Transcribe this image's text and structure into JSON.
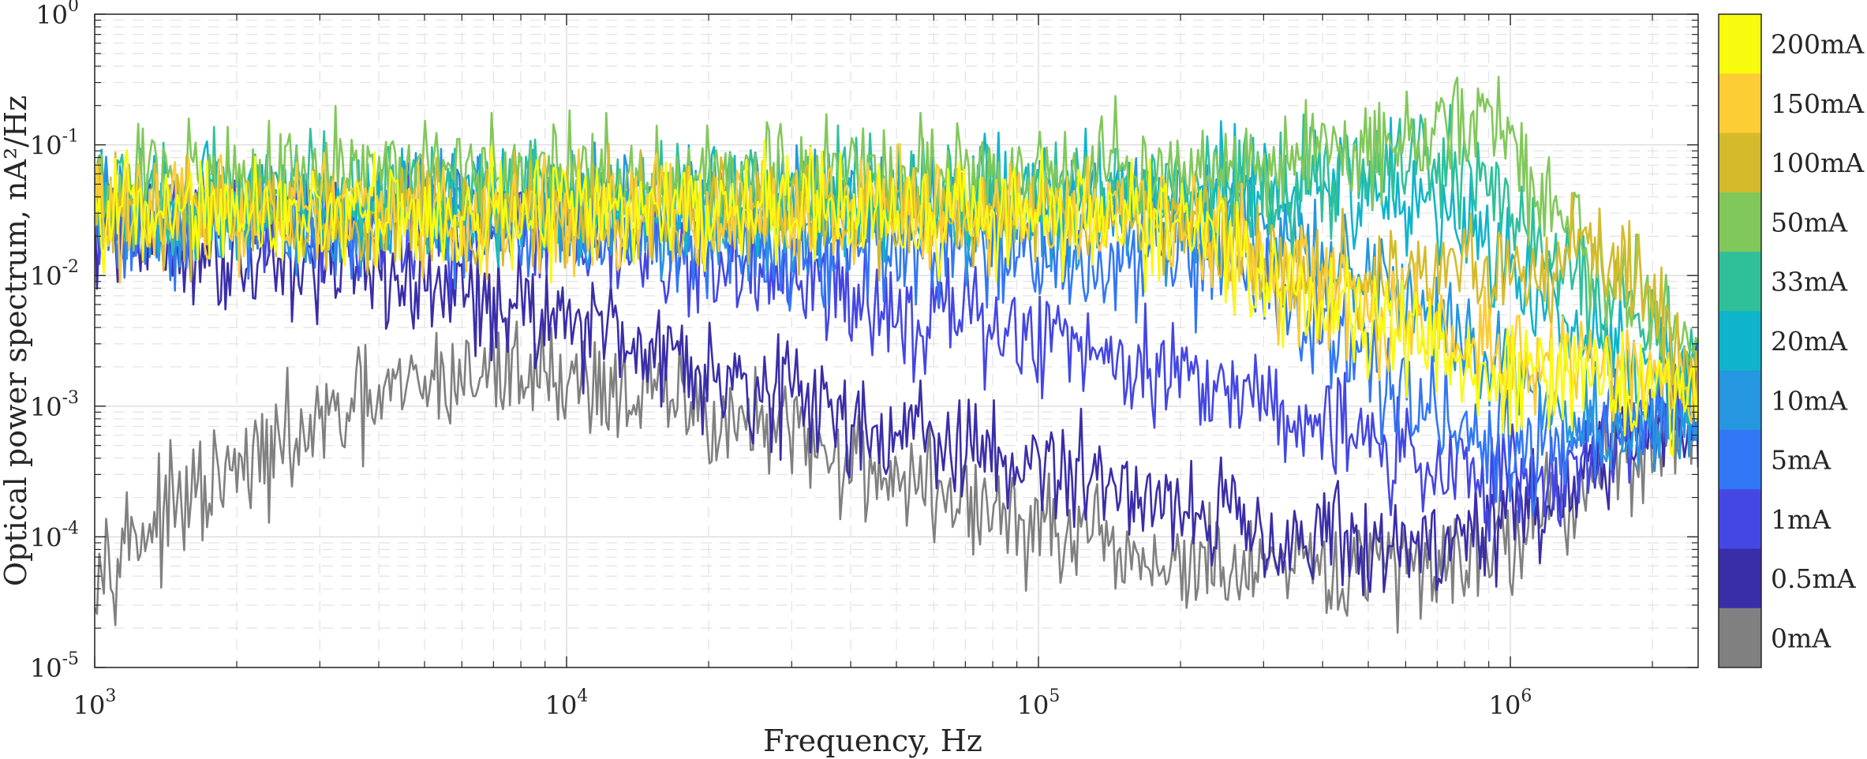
{
  "chart_data": {
    "type": "line",
    "title": "",
    "xlabel": "Frequency, Hz",
    "ylabel": "Optical power spectrum,  nA²/Hz",
    "xscale": "log",
    "yscale": "log",
    "xlim": [
      1000,
      2500000
    ],
    "ylim": [
      1e-05,
      1
    ],
    "grid": true,
    "x_ticks": [
      {
        "base": "10",
        "exp": "3",
        "value": 1000
      },
      {
        "base": "10",
        "exp": "4",
        "value": 10000
      },
      {
        "base": "10",
        "exp": "5",
        "value": 100000
      },
      {
        "base": "10",
        "exp": "6",
        "value": 1000000
      }
    ],
    "y_ticks": [
      {
        "base": "10",
        "exp": "0",
        "value": 1
      },
      {
        "base": "10",
        "exp": "-1",
        "value": 0.1
      },
      {
        "base": "10",
        "exp": "-2",
        "value": 0.01
      },
      {
        "base": "10",
        "exp": "-3",
        "value": 0.001
      },
      {
        "base": "10",
        "exp": "-4",
        "value": 0.0001
      },
      {
        "base": "10",
        "exp": "-5",
        "value": 1e-05
      }
    ],
    "colorbar": {
      "placement": "right",
      "entries": [
        {
          "label": "200mA",
          "color": "#f9fb0e"
        },
        {
          "label": "150mA",
          "color": "#fccd34"
        },
        {
          "label": "100mA",
          "color": "#d5bb2b"
        },
        {
          "label": "50mA",
          "color": "#81c85a"
        },
        {
          "label": "33mA",
          "color": "#2fc09a"
        },
        {
          "label": "20mA",
          "color": "#0fb4cc"
        },
        {
          "label": "10mA",
          "color": "#2596e0"
        },
        {
          "label": "5mA",
          "color": "#3277f5"
        },
        {
          "label": "1mA",
          "color": "#4447e3"
        },
        {
          "label": "0.5mA",
          "color": "#3a2ea8"
        },
        {
          "label": "0mA",
          "color": "#808080"
        }
      ]
    },
    "series": [
      {
        "name": "0mA",
        "color": "#808080",
        "x": [
          1000,
          2000,
          3000,
          5000,
          8000,
          10000,
          20000,
          40000,
          80000,
          150000,
          300000,
          600000,
          1000000,
          1500000,
          2500000
        ],
        "y": [
          7e-05,
          0.0003,
          0.0007,
          0.0015,
          0.002,
          0.0017,
          0.0009,
          0.0004,
          0.00015,
          7e-05,
          5e-05,
          6e-05,
          0.0001,
          0.0003,
          0.0008
        ]
      },
      {
        "name": "0.5mA",
        "color": "#3a2ea8",
        "x": [
          1000,
          2000,
          3000,
          5000,
          8000,
          10000,
          20000,
          40000,
          80000,
          150000,
          300000,
          500000,
          800000,
          1200000,
          1800000,
          2500000
        ],
        "y": [
          0.02,
          0.015,
          0.012,
          0.008,
          0.006,
          0.005,
          0.002,
          0.0008,
          0.0004,
          0.00025,
          0.00012,
          8e-05,
          0.0001,
          0.0002,
          0.0005,
          0.001
        ]
      },
      {
        "name": "1mA",
        "color": "#4447e3",
        "x": [
          1000,
          3000,
          5000,
          8000,
          10000,
          20000,
          40000,
          80000,
          150000,
          300000,
          500000,
          800000,
          1200000,
          1800000,
          2500000
        ],
        "y": [
          0.025,
          0.025,
          0.022,
          0.02,
          0.018,
          0.012,
          0.007,
          0.004,
          0.0025,
          0.0012,
          0.0005,
          0.0003,
          0.0003,
          0.0006,
          0.0012
        ]
      },
      {
        "name": "5mA",
        "color": "#3277f5",
        "x": [
          1000,
          5000,
          10000,
          20000,
          40000,
          80000,
          150000,
          200000,
          300000,
          500000,
          800000,
          1200000,
          1800000,
          2500000
        ],
        "y": [
          0.025,
          0.025,
          0.024,
          0.02,
          0.015,
          0.014,
          0.013,
          0.012,
          0.008,
          0.002,
          0.0006,
          0.0005,
          0.0007,
          0.001
        ]
      },
      {
        "name": "10mA",
        "color": "#2596e0",
        "x": [
          1000,
          10000,
          50000,
          100000,
          200000,
          300000,
          500000,
          800000,
          1200000,
          1800000,
          2500000
        ],
        "y": [
          0.03,
          0.03,
          0.03,
          0.03,
          0.025,
          0.02,
          0.01,
          0.003,
          0.001,
          0.0007,
          0.0008
        ]
      },
      {
        "name": "20mA",
        "color": "#0fb4cc",
        "x": [
          1000,
          10000,
          50000,
          100000,
          200000,
          400000,
          600000,
          800000,
          1000000,
          1300000,
          1800000,
          2500000
        ],
        "y": [
          0.035,
          0.035,
          0.035,
          0.04,
          0.04,
          0.05,
          0.04,
          0.025,
          0.01,
          0.004,
          0.003,
          0.0015
        ]
      },
      {
        "name": "33mA",
        "color": "#2fc09a",
        "x": [
          1000,
          10000,
          100000,
          300000,
          500000,
          700000,
          900000,
          1100000,
          1500000,
          2000000,
          2500000
        ],
        "y": [
          0.04,
          0.04,
          0.04,
          0.05,
          0.06,
          0.07,
          0.06,
          0.02,
          0.008,
          0.004,
          0.002
        ]
      },
      {
        "name": "50mA",
        "color": "#81c85a",
        "x": [
          1000,
          10000,
          100000,
          300000,
          500000,
          700000,
          850000,
          1000000,
          1200000,
          1500000,
          2000000,
          2500000
        ],
        "y": [
          0.06,
          0.06,
          0.06,
          0.07,
          0.08,
          0.12,
          0.18,
          0.1,
          0.03,
          0.012,
          0.006,
          0.003
        ]
      },
      {
        "name": "100mA",
        "color": "#d5bb2b",
        "x": [
          1000,
          10000,
          100000,
          200000,
          300000,
          500000,
          800000,
          1100000,
          1400000,
          1800000,
          2500000
        ],
        "y": [
          0.03,
          0.03,
          0.03,
          0.025,
          0.015,
          0.008,
          0.012,
          0.01,
          0.02,
          0.01,
          0.002
        ]
      },
      {
        "name": "150mA",
        "color": "#fccd34",
        "x": [
          1000,
          10000,
          100000,
          200000,
          300000,
          500000,
          800000,
          1200000,
          1800000,
          2500000
        ],
        "y": [
          0.03,
          0.03,
          0.03,
          0.025,
          0.012,
          0.005,
          0.003,
          0.002,
          0.002,
          0.0015
        ]
      },
      {
        "name": "200mA",
        "color": "#f9fb0e",
        "x": [
          1000,
          10000,
          100000,
          200000,
          300000,
          500000,
          800000,
          1200000,
          1800000,
          2500000
        ],
        "y": [
          0.03,
          0.03,
          0.03,
          0.025,
          0.01,
          0.004,
          0.002,
          0.0015,
          0.0015,
          0.0012
        ]
      }
    ]
  }
}
